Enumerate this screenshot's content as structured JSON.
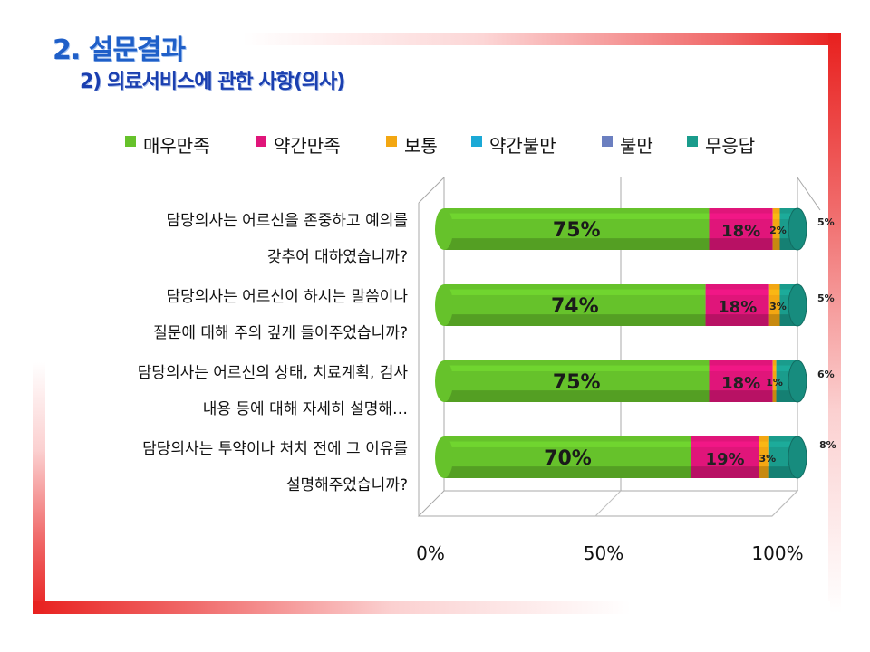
{
  "slide": {
    "title": "2. 설문결과",
    "subtitle": "2) 의료서비스에 관한 사항(의사)"
  },
  "chart_data": {
    "type": "bar",
    "orientation": "horizontal",
    "stacked": true,
    "percent_stacked": true,
    "three_d": true,
    "legend_position": "top",
    "categories": [
      "담당의사는 어르신을 존중하고 예의를 갖추어 대하였습니까?",
      "담당의사는 어르신이 하시는 말씀이나 질문에 대해 주의 깊게 들어주었습니까?",
      "담당의사는 어르신의 상태, 치료계획, 검사 내용 등에 대해 자세히 설명해…",
      "담당의사는 투약이나 처치 전에 그 이유를 설명해주었습니까?"
    ],
    "category_lines": [
      [
        "담당의사는 어르신을 존중하고 예의를",
        "갖추어 대하였습니까?"
      ],
      [
        "담당의사는 어르신이 하시는 말씀이나",
        "질문에 대해 주의 깊게 들어주었습니까?"
      ],
      [
        "담당의사는 어르신의 상태, 치료계획, 검사",
        "내용 등에 대해 자세히 설명해…"
      ],
      [
        "담당의사는 투약이나 처치 전에 그 이유를",
        "설명해주었습니까?"
      ]
    ],
    "series": [
      {
        "name": "매우만족",
        "color": "#66c22b",
        "values": [
          75,
          74,
          75,
          70
        ],
        "labels": [
          "75%",
          "74%",
          "75%",
          "70%"
        ]
      },
      {
        "name": "약간만족",
        "color": "#e0157a",
        "values": [
          18,
          18,
          18,
          19
        ],
        "labels": [
          "18%",
          "18%",
          "18%",
          "19%"
        ]
      },
      {
        "name": "보통",
        "color": "#f3a712",
        "values": [
          2,
          3,
          1,
          3
        ],
        "labels": [
          "2%",
          "3%",
          "1%",
          "3%"
        ]
      },
      {
        "name": "약간불만",
        "color": "#1ba9d6",
        "values": [
          0,
          0,
          0,
          0
        ],
        "labels": [
          "",
          "",
          "",
          ""
        ]
      },
      {
        "name": "불만",
        "color": "#6b7fc0",
        "values": [
          0,
          0,
          0,
          0
        ],
        "labels": [
          "",
          "",
          "",
          ""
        ]
      },
      {
        "name": "무응답",
        "color": "#1a9c8c",
        "values": [
          5,
          5,
          6,
          8
        ],
        "labels": [
          "5%",
          "5%",
          "6%",
          "8%"
        ]
      }
    ],
    "x_ticks": [
      "0%",
      "50%",
      "100%"
    ],
    "xlim": [
      0,
      100
    ],
    "grid": true
  }
}
